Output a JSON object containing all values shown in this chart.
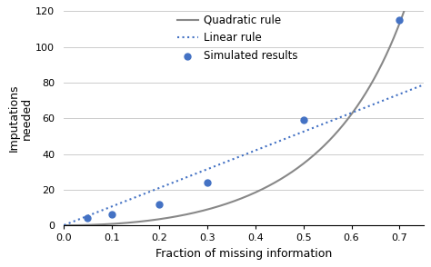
{
  "scatter_x": [
    0.05,
    0.1,
    0.2,
    0.3,
    0.5,
    0.7
  ],
  "scatter_y": [
    4,
    6,
    12,
    24,
    59,
    115
  ],
  "scatter_color": "#4472c4",
  "scatter_size": 25,
  "quadratic_color": "#888888",
  "linear_color": "#4472c4",
  "xlabel": "Fraction of missing information",
  "ylabel": "Imputations\nneeded",
  "xlim": [
    0.0,
    0.75
  ],
  "ylim": [
    0,
    120
  ],
  "xticks": [
    0.0,
    0.1,
    0.2,
    0.3,
    0.4,
    0.5,
    0.6,
    0.7
  ],
  "yticks": [
    0,
    20,
    40,
    60,
    80,
    100,
    120
  ],
  "legend_labels": [
    "Simulated results",
    "Quadratic rule",
    "Linear rule"
  ],
  "background_color": "#ffffff",
  "grid_color": "#cccccc",
  "quad_A": 20.0,
  "quad_power_num": 2.0,
  "quad_power_den": 2.0,
  "lin_slope": 105.0
}
